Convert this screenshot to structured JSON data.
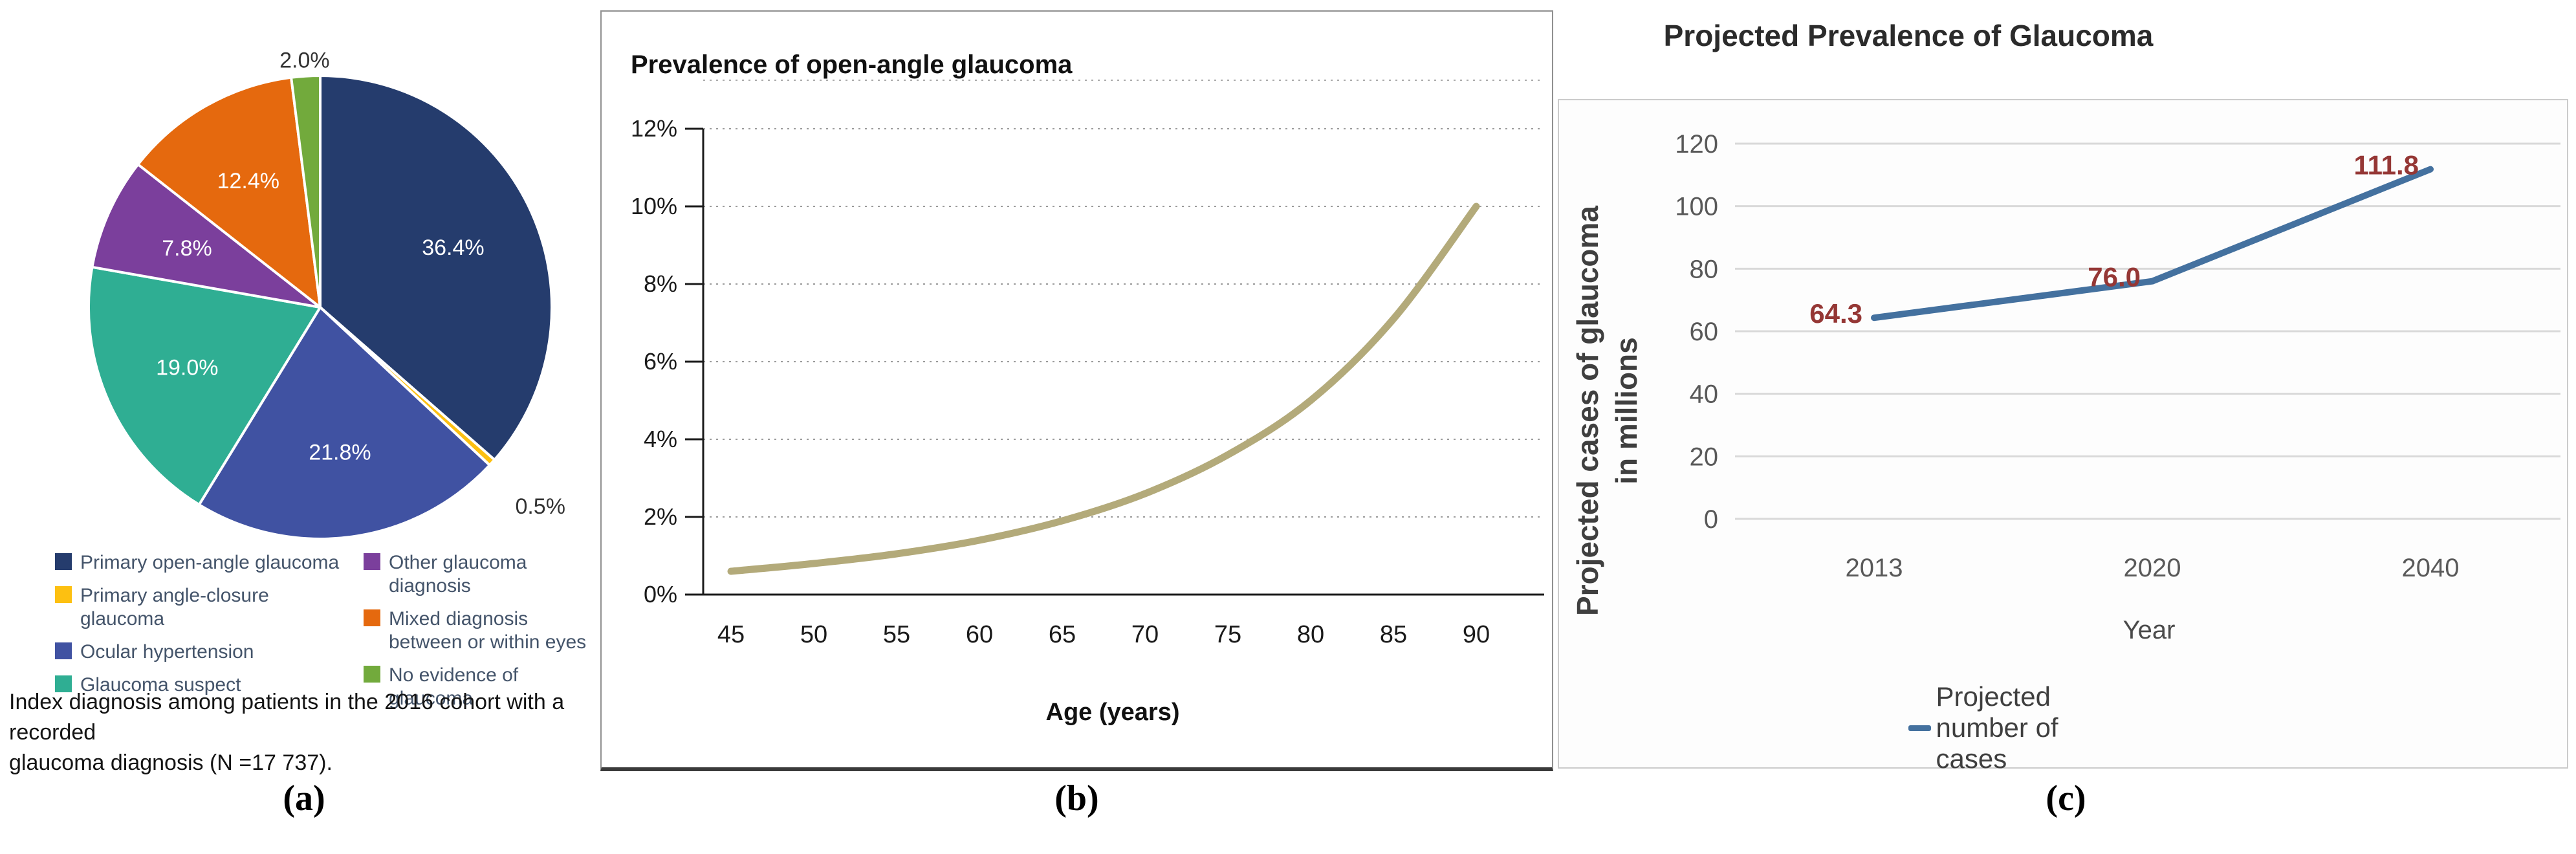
{
  "panels": {
    "a": {
      "letter": "(a)"
    },
    "b": {
      "letter": "(b)"
    },
    "c": {
      "letter": "(c)"
    }
  },
  "chart_data": [
    {
      "type": "pie",
      "labels": [
        "Primary open-angle glaucoma",
        "Primary angle-closure glaucoma",
        "Ocular hypertension",
        "Glaucoma suspect",
        "Other glaucoma diagnosis",
        "Mixed diagnosis between or within eyes",
        "No evidence of glaucoma"
      ],
      "values": [
        36.4,
        0.5,
        21.8,
        19.0,
        7.8,
        12.4,
        2.0
      ],
      "slice_labels": [
        "36.4%",
        "0.5%",
        "21.8%",
        "19.0%",
        "7.8%",
        "12.4%",
        "2.0%"
      ],
      "colors": [
        "#253c6d",
        "#fdc011",
        "#4052a2",
        "#2fae93",
        "#7b3f9c",
        "#e5690e",
        "#72aa3c"
      ],
      "label_outside": [
        false,
        true,
        false,
        false,
        false,
        false,
        true
      ],
      "start_angle_deg": 0,
      "direction": "clockwise",
      "legend_columns": [
        [
          0,
          1,
          2,
          3
        ],
        [
          4,
          5,
          6
        ]
      ],
      "caption_lines": [
        "Index diagnosis among patients in the 2016 cohort with a recorded",
        "glaucoma diagnosis (N =17 737)."
      ]
    },
    {
      "type": "line",
      "title": "Prevalence of open-angle glaucoma",
      "xlabel": "Age (years)",
      "x": [
        45,
        50,
        55,
        60,
        65,
        70,
        75,
        80,
        85,
        90
      ],
      "y": [
        0.6,
        0.8,
        1.05,
        1.4,
        1.9,
        2.6,
        3.6,
        5.0,
        7.1,
        10.0
      ],
      "x_tick_labels": [
        "45",
        "50",
        "55",
        "60",
        "65",
        "70",
        "75",
        "80",
        "85",
        "90"
      ],
      "y_tick_labels": [
        "0%",
        "2%",
        "4%",
        "6%",
        "8%",
        "10%",
        "12%"
      ],
      "ylim": [
        0,
        12
      ],
      "grid": "dotted horizontal",
      "line_color": "#b3aa7a"
    },
    {
      "type": "line",
      "title": "Projected Prevalence of Glaucoma",
      "categories": [
        "2013",
        "2020",
        "2040"
      ],
      "values": [
        64.3,
        76.0,
        111.8
      ],
      "data_labels": [
        "64.3",
        "76.0",
        "111.8"
      ],
      "data_label_color": "#953735",
      "ylabel": "Projected cases of glaucoma in millions",
      "ylabel_lines": [
        "Projected cases of glaucoma",
        "in millions"
      ],
      "xlabel": "Year",
      "y_tick_labels": [
        "0",
        "20",
        "40",
        "60",
        "80",
        "100",
        "120"
      ],
      "ylim": [
        0,
        120
      ],
      "ytick_step": 20,
      "grid": "solid horizontal",
      "line_color": "#44719f",
      "legend": [
        "Projected number of cases"
      ],
      "legend_position": "bottom"
    }
  ]
}
